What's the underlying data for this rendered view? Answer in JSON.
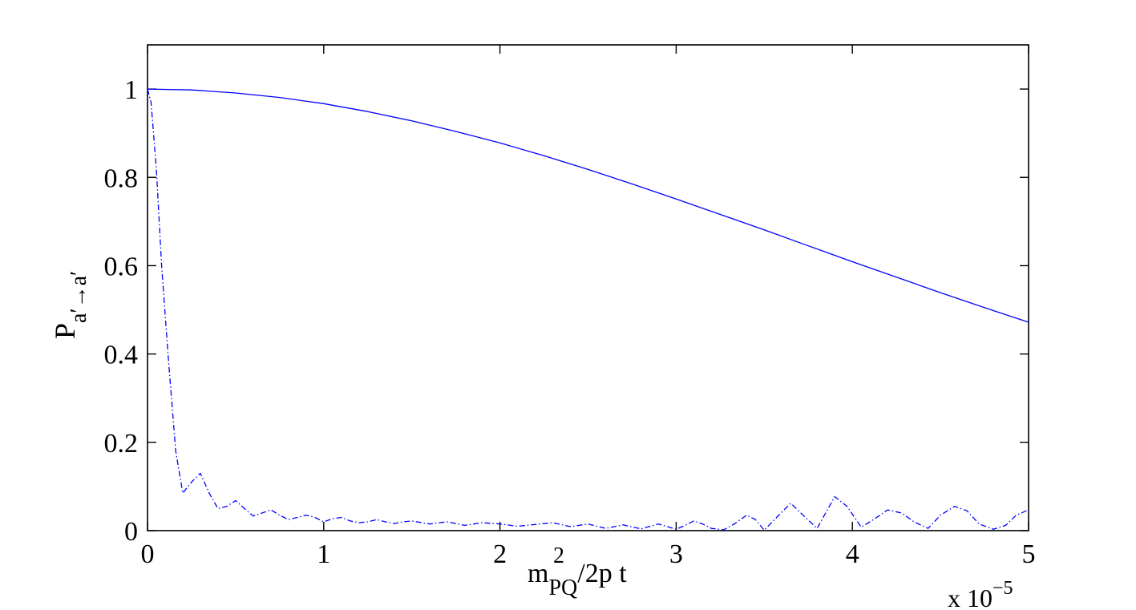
{
  "chart_data": {
    "type": "line",
    "title": "",
    "xlabel": {
      "base": "m",
      "superscript": "2",
      "subscript": "PQ",
      "rest": "/2p t"
    },
    "ylabel": {
      "base": "P",
      "subscript": "a′→a′"
    },
    "x_multiplier_label": "x 10",
    "x_multiplier_exponent": "−5",
    "xlim": [
      0,
      5
    ],
    "ylim": [
      0,
      1.1
    ],
    "x_ticks": [
      0,
      1,
      2,
      3,
      4,
      5
    ],
    "x_tick_labels": [
      "0",
      "1",
      "2",
      "3",
      "4",
      "5"
    ],
    "y_ticks": [
      0,
      0.2,
      0.4,
      0.6,
      0.8,
      1
    ],
    "y_tick_labels": [
      "0",
      "0.2",
      "0.4",
      "0.6",
      "0.8",
      "1"
    ],
    "grid": false,
    "series": [
      {
        "style": "solid",
        "color": "#0000ff",
        "x": [
          0,
          0.25,
          0.5,
          0.75,
          1.0,
          1.25,
          1.5,
          1.75,
          2.0,
          2.25,
          2.5,
          2.75,
          3.0,
          3.25,
          3.5,
          3.75,
          4.0,
          4.25,
          4.5,
          4.75,
          5.0
        ],
        "y": [
          1.0,
          0.998,
          0.991,
          0.981,
          0.967,
          0.949,
          0.928,
          0.904,
          0.878,
          0.849,
          0.818,
          0.785,
          0.751,
          0.716,
          0.681,
          0.645,
          0.609,
          0.574,
          0.539,
          0.505,
          0.472
        ]
      },
      {
        "style": "dashdot",
        "color": "#0000ff",
        "x": [
          0,
          0.02,
          0.05,
          0.08,
          0.12,
          0.16,
          0.2,
          0.25,
          0.3,
          0.35,
          0.4,
          0.45,
          0.5,
          0.55,
          0.6,
          0.65,
          0.7,
          0.75,
          0.8,
          0.85,
          0.9,
          0.95,
          1.0,
          1.05,
          1.1,
          1.15,
          1.2,
          1.25,
          1.3,
          1.35,
          1.4,
          1.45,
          1.5,
          1.6,
          1.7,
          1.8,
          1.9,
          2.0,
          2.1,
          2.2,
          2.3,
          2.4,
          2.5,
          2.6,
          2.7,
          2.8,
          2.9,
          3.0,
          3.05,
          3.1,
          3.15,
          3.2,
          3.27,
          3.33,
          3.4,
          3.45,
          3.5,
          3.57,
          3.65,
          3.72,
          3.8,
          3.9,
          3.97,
          4.05,
          4.12,
          4.2,
          4.28,
          4.35,
          4.43,
          4.5,
          4.58,
          4.65,
          4.72,
          4.8,
          4.87,
          4.93,
          5.0
        ],
        "y": [
          1.0,
          0.97,
          0.82,
          0.6,
          0.38,
          0.18,
          0.085,
          0.11,
          0.13,
          0.085,
          0.05,
          0.055,
          0.068,
          0.05,
          0.033,
          0.04,
          0.047,
          0.035,
          0.025,
          0.03,
          0.035,
          0.03,
          0.02,
          0.027,
          0.03,
          0.022,
          0.018,
          0.02,
          0.025,
          0.02,
          0.016,
          0.02,
          0.022,
          0.015,
          0.02,
          0.012,
          0.018,
          0.015,
          0.01,
          0.014,
          0.018,
          0.009,
          0.015,
          0.005,
          0.013,
          0.004,
          0.015,
          0.003,
          0.012,
          0.022,
          0.015,
          0.005,
          0.002,
          0.015,
          0.035,
          0.025,
          0.001,
          0.03,
          0.062,
          0.035,
          0.005,
          0.077,
          0.055,
          0.008,
          0.025,
          0.047,
          0.04,
          0.02,
          0.005,
          0.035,
          0.055,
          0.045,
          0.015,
          0.003,
          0.012,
          0.035,
          0.047
        ]
      }
    ]
  }
}
